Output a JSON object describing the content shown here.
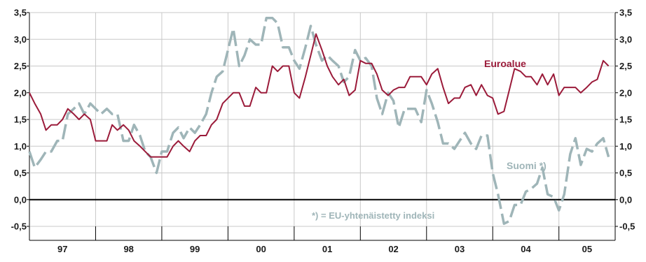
{
  "chart_data": {
    "type": "line",
    "title": "",
    "xlabel": "",
    "ylabel": "",
    "ylim": [
      -0.5,
      3.5
    ],
    "yticks": [
      "3,5",
      "3,0",
      "2,5",
      "2,0",
      "1,5",
      "1,0",
      "0,5",
      "0,0",
      "-0,5"
    ],
    "ytick_values": [
      3.5,
      3.0,
      2.5,
      2.0,
      1.5,
      1.0,
      0.5,
      0.0,
      -0.5
    ],
    "x_categories": [
      "97",
      "98",
      "99",
      "00",
      "01",
      "02",
      "03",
      "04",
      "05"
    ],
    "grid": true,
    "x_start": 1997.0,
    "x_end": 2005.85,
    "series": [
      {
        "name": "Euroalue",
        "color": "#9b1b3a",
        "style": "solid",
        "x": [
          1997.0,
          1997.08,
          1997.17,
          1997.25,
          1997.33,
          1997.42,
          1997.5,
          1997.58,
          1997.67,
          1997.75,
          1997.83,
          1997.92,
          1998.0,
          1998.08,
          1998.17,
          1998.25,
          1998.33,
          1998.42,
          1998.5,
          1998.58,
          1998.67,
          1998.75,
          1998.83,
          1998.92,
          1999.0,
          1999.08,
          1999.17,
          1999.25,
          1999.33,
          1999.42,
          1999.5,
          1999.58,
          1999.67,
          1999.75,
          1999.83,
          1999.92,
          2000.0,
          2000.08,
          2000.17,
          2000.25,
          2000.33,
          2000.42,
          2000.5,
          2000.58,
          2000.67,
          2000.75,
          2000.83,
          2000.92,
          2001.0,
          2001.08,
          2001.17,
          2001.25,
          2001.33,
          2001.42,
          2001.5,
          2001.58,
          2001.67,
          2001.75,
          2001.83,
          2001.92,
          2002.0,
          2002.08,
          2002.17,
          2002.25,
          2002.33,
          2002.42,
          2002.5,
          2002.58,
          2002.67,
          2002.75,
          2002.83,
          2002.92,
          2003.0,
          2003.08,
          2003.17,
          2003.25,
          2003.33,
          2003.42,
          2003.5,
          2003.58,
          2003.67,
          2003.75,
          2003.83,
          2003.92,
          2004.0,
          2004.08,
          2004.17,
          2004.25,
          2004.33,
          2004.42,
          2004.5,
          2004.58,
          2004.67,
          2004.75,
          2004.83,
          2004.92,
          2005.0,
          2005.08,
          2005.17,
          2005.25,
          2005.33,
          2005.42,
          2005.5,
          2005.58,
          2005.67,
          2005.75
        ],
        "values": [
          2.0,
          1.8,
          1.6,
          1.3,
          1.4,
          1.4,
          1.5,
          1.7,
          1.6,
          1.5,
          1.6,
          1.5,
          1.1,
          1.1,
          1.1,
          1.4,
          1.3,
          1.4,
          1.3,
          1.1,
          1.0,
          0.9,
          0.8,
          0.8,
          0.8,
          0.8,
          1.0,
          1.1,
          1.0,
          0.9,
          1.1,
          1.2,
          1.2,
          1.4,
          1.5,
          1.8,
          1.9,
          2.0,
          2.0,
          1.75,
          1.75,
          2.1,
          2.0,
          2.0,
          2.5,
          2.4,
          2.5,
          2.5,
          2.0,
          1.9,
          2.3,
          2.7,
          3.1,
          2.8,
          2.5,
          2.3,
          2.15,
          2.25,
          1.95,
          2.05,
          2.6,
          2.55,
          2.55,
          2.35,
          2.05,
          1.95,
          2.05,
          2.1,
          2.1,
          2.3,
          2.3,
          2.3,
          2.15,
          2.35,
          2.45,
          2.1,
          1.8,
          1.9,
          1.9,
          2.1,
          2.15,
          1.95,
          2.15,
          1.95,
          1.9,
          1.6,
          1.65,
          2.05,
          2.45,
          2.4,
          2.3,
          2.3,
          2.15,
          2.35,
          2.15,
          2.35,
          1.95,
          2.1,
          2.1,
          2.1,
          2.0,
          2.1,
          2.2,
          2.25,
          2.6,
          2.5
        ]
      },
      {
        "name": "Suomi *)",
        "color": "#9fb5b8",
        "style": "dashed",
        "x": [
          1997.0,
          1997.08,
          1997.17,
          1997.25,
          1997.33,
          1997.42,
          1997.5,
          1997.58,
          1997.67,
          1997.75,
          1997.83,
          1997.92,
          1998.0,
          1998.08,
          1998.17,
          1998.25,
          1998.33,
          1998.42,
          1998.5,
          1998.58,
          1998.67,
          1998.75,
          1998.83,
          1998.92,
          1999.0,
          1999.08,
          1999.17,
          1999.25,
          1999.33,
          1999.42,
          1999.5,
          1999.58,
          1999.67,
          1999.75,
          1999.83,
          1999.92,
          2000.0,
          2000.08,
          2000.17,
          2000.25,
          2000.33,
          2000.42,
          2000.5,
          2000.58,
          2000.67,
          2000.75,
          2000.83,
          2000.92,
          2001.0,
          2001.08,
          2001.17,
          2001.25,
          2001.33,
          2001.42,
          2001.5,
          2001.58,
          2001.67,
          2001.75,
          2001.83,
          2001.92,
          2002.0,
          2002.08,
          2002.17,
          2002.25,
          2002.33,
          2002.42,
          2002.5,
          2002.58,
          2002.67,
          2002.75,
          2002.83,
          2002.92,
          2003.0,
          2003.08,
          2003.17,
          2003.25,
          2003.33,
          2003.42,
          2003.5,
          2003.58,
          2003.67,
          2003.75,
          2003.83,
          2003.92,
          2004.0,
          2004.08,
          2004.17,
          2004.25,
          2004.33,
          2004.42,
          2004.5,
          2004.58,
          2004.67,
          2004.75,
          2004.83,
          2004.92,
          2005.0,
          2005.08,
          2005.17,
          2005.25,
          2005.33,
          2005.42,
          2005.5,
          2005.58,
          2005.67,
          2005.75
        ],
        "values": [
          0.9,
          0.6,
          0.75,
          0.9,
          0.9,
          1.1,
          1.1,
          1.6,
          1.7,
          1.8,
          1.6,
          1.8,
          1.7,
          1.6,
          1.7,
          1.6,
          1.6,
          1.1,
          1.1,
          1.4,
          1.2,
          0.9,
          0.8,
          0.5,
          0.9,
          0.9,
          1.25,
          1.35,
          1.15,
          1.35,
          1.25,
          1.4,
          1.6,
          2.0,
          2.3,
          2.4,
          2.8,
          3.2,
          2.5,
          2.7,
          3.0,
          2.9,
          2.9,
          3.4,
          3.4,
          3.3,
          2.85,
          2.85,
          2.6,
          2.45,
          2.85,
          3.25,
          2.9,
          2.6,
          2.7,
          2.6,
          2.5,
          2.2,
          2.3,
          2.8,
          2.6,
          2.65,
          2.5,
          1.9,
          1.6,
          2.0,
          1.85,
          1.35,
          1.7,
          1.7,
          1.7,
          1.45,
          2.05,
          1.8,
          1.45,
          1.05,
          1.05,
          0.95,
          1.1,
          1.25,
          1.05,
          0.95,
          1.2,
          1.2,
          0.5,
          0.1,
          -0.45,
          -0.4,
          -0.1,
          -0.1,
          0.15,
          0.2,
          0.3,
          0.6,
          0.1,
          0.05,
          -0.2,
          0.1,
          0.85,
          1.15,
          0.65,
          0.95,
          0.9,
          1.05,
          1.15,
          0.8
        ]
      }
    ],
    "annotations": {
      "euroalue_label": "Euroalue",
      "suomi_label": "Suomi *)",
      "footnote": "*) = EU-yhtenäistetty indeksi"
    }
  }
}
